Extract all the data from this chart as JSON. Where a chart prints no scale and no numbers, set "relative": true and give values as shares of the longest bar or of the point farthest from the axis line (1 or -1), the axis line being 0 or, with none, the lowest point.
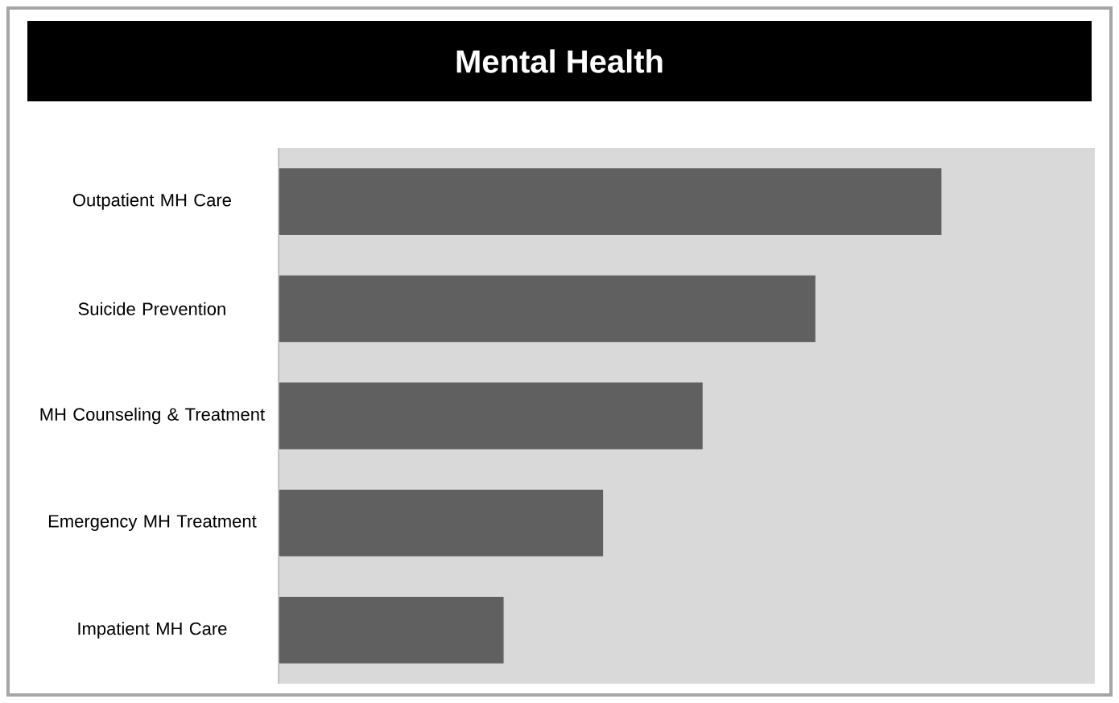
{
  "chart_data": {
    "type": "bar",
    "orientation": "horizontal",
    "relative": true,
    "title": "Mental Health",
    "categories": [
      "Outpatient MH Care",
      "Suicide Prevention",
      "MH Counseling & Treatment",
      "Emergency MH Treatment",
      "Impatient MH Care"
    ],
    "values": [
      1,
      0.81,
      0.64,
      0.49,
      0.34
    ],
    "color": "#606060"
  }
}
